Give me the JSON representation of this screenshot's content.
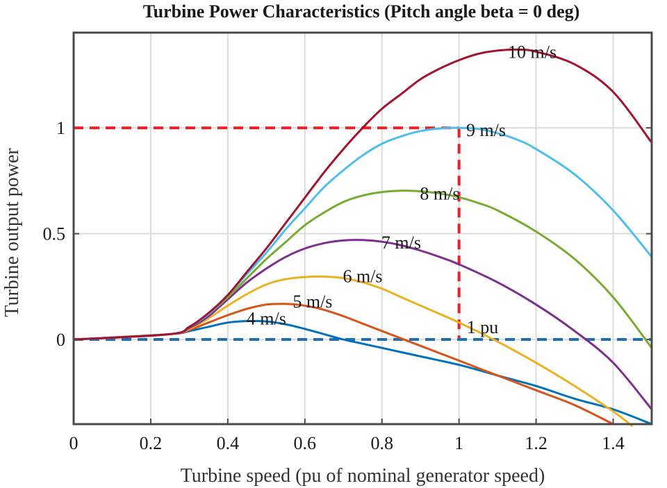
{
  "chart_data": {
    "type": "line",
    "title": "Turbine Power Characteristics (Pitch angle beta = 0 deg)",
    "xlabel": "Turbine speed (pu of nominal generator speed)",
    "ylabel": "Turbine output power",
    "xlim": [
      0,
      1.5
    ],
    "ylim": [
      -0.4,
      1.45
    ],
    "x_ticks": [
      0,
      0.2,
      0.4,
      0.6,
      0.8,
      1,
      1.2,
      1.4
    ],
    "x_tick_labels": [
      "0",
      "0.2",
      "0.4",
      "0.6",
      "0.8",
      "1",
      "1.2",
      "1.4"
    ],
    "y_ticks": [
      0,
      0.5,
      1
    ],
    "y_tick_labels": [
      "0",
      "0.5",
      "1"
    ],
    "grid": true,
    "series": [
      {
        "name": "4 m/s",
        "label": "4 m/s",
        "color": "#0072BD",
        "label_at": [
          0.5,
          0.1
        ],
        "x": [
          0,
          0.25,
          0.3,
          0.35,
          0.4,
          0.45,
          0.5,
          0.55,
          0.6,
          0.65,
          0.7,
          0.75,
          0.8,
          0.9,
          1.0,
          1.1,
          1.2,
          1.3,
          1.4,
          1.5
        ],
        "y": [
          0,
          0.025,
          0.04,
          0.06,
          0.08,
          0.087,
          0.085,
          0.072,
          0.05,
          0.025,
          0.0,
          -0.02,
          -0.04,
          -0.08,
          -0.12,
          -0.17,
          -0.22,
          -0.28,
          -0.33,
          -0.4
        ]
      },
      {
        "name": "5 m/s",
        "label": "5 m/s",
        "color": "#D95319",
        "label_at": [
          0.62,
          0.18
        ],
        "x": [
          0,
          0.25,
          0.3,
          0.35,
          0.4,
          0.45,
          0.5,
          0.55,
          0.6,
          0.65,
          0.7,
          0.75,
          0.8,
          0.9,
          1.0,
          1.1,
          1.2,
          1.3,
          1.4
        ],
        "y": [
          0,
          0.025,
          0.045,
          0.08,
          0.115,
          0.145,
          0.165,
          0.168,
          0.16,
          0.14,
          0.11,
          0.075,
          0.04,
          -0.03,
          -0.1,
          -0.17,
          -0.24,
          -0.31,
          -0.4
        ]
      },
      {
        "name": "6 m/s",
        "label": "6 m/s",
        "color": "#EDB120",
        "label_at": [
          0.75,
          0.3
        ],
        "x": [
          0,
          0.25,
          0.3,
          0.35,
          0.4,
          0.45,
          0.5,
          0.55,
          0.6,
          0.65,
          0.7,
          0.75,
          0.8,
          0.85,
          0.9,
          1.0,
          1.1,
          1.2,
          1.3,
          1.4,
          1.45
        ],
        "y": [
          0,
          0.025,
          0.05,
          0.1,
          0.16,
          0.215,
          0.26,
          0.285,
          0.295,
          0.297,
          0.29,
          0.27,
          0.24,
          0.2,
          0.16,
          0.08,
          -0.01,
          -0.11,
          -0.22,
          -0.34,
          -0.41
        ]
      },
      {
        "name": "7 m/s",
        "label": "7 m/s",
        "color": "#7E2F8E",
        "label_at": [
          0.85,
          0.46
        ],
        "x": [
          0,
          0.25,
          0.3,
          0.35,
          0.4,
          0.45,
          0.5,
          0.55,
          0.6,
          0.65,
          0.7,
          0.75,
          0.8,
          0.85,
          0.9,
          0.95,
          1.0,
          1.1,
          1.2,
          1.3,
          1.4,
          1.5
        ],
        "y": [
          0,
          0.025,
          0.055,
          0.11,
          0.19,
          0.27,
          0.335,
          0.39,
          0.43,
          0.455,
          0.468,
          0.47,
          0.462,
          0.445,
          0.42,
          0.39,
          0.355,
          0.27,
          0.165,
          0.04,
          -0.11,
          -0.33
        ]
      },
      {
        "name": "8 m/s",
        "label": "8 m/s",
        "color": "#77AC30",
        "label_at": [
          0.95,
          0.69
        ],
        "x": [
          0,
          0.25,
          0.3,
          0.35,
          0.4,
          0.45,
          0.5,
          0.55,
          0.6,
          0.65,
          0.7,
          0.75,
          0.8,
          0.85,
          0.9,
          0.95,
          1.0,
          1.05,
          1.1,
          1.2,
          1.3,
          1.4,
          1.5
        ],
        "y": [
          0,
          0.025,
          0.06,
          0.12,
          0.2,
          0.29,
          0.38,
          0.46,
          0.54,
          0.6,
          0.65,
          0.68,
          0.697,
          0.703,
          0.7,
          0.69,
          0.672,
          0.645,
          0.61,
          0.51,
          0.38,
          0.2,
          -0.04
        ]
      },
      {
        "name": "9 m/s",
        "label": "9 m/s",
        "color": "#4DBEEE",
        "label_at": [
          1.07,
          0.99
        ],
        "x": [
          0,
          0.25,
          0.3,
          0.35,
          0.4,
          0.45,
          0.5,
          0.55,
          0.6,
          0.65,
          0.7,
          0.75,
          0.8,
          0.85,
          0.9,
          0.95,
          1.0,
          1.05,
          1.1,
          1.15,
          1.2,
          1.3,
          1.4,
          1.5
        ],
        "y": [
          0,
          0.025,
          0.06,
          0.12,
          0.21,
          0.31,
          0.41,
          0.52,
          0.62,
          0.72,
          0.8,
          0.87,
          0.925,
          0.96,
          0.985,
          0.997,
          1.0,
          0.995,
          0.975,
          0.945,
          0.9,
          0.78,
          0.61,
          0.39
        ]
      },
      {
        "name": "10 m/s",
        "label": "10 m/s",
        "color": "#A2142F",
        "label_at": [
          1.19,
          1.36
        ],
        "x": [
          0,
          0.25,
          0.3,
          0.35,
          0.4,
          0.45,
          0.5,
          0.55,
          0.6,
          0.65,
          0.7,
          0.75,
          0.8,
          0.85,
          0.9,
          0.95,
          1.0,
          1.05,
          1.1,
          1.15,
          1.2,
          1.3,
          1.4,
          1.5
        ],
        "y": [
          0,
          0.025,
          0.06,
          0.125,
          0.21,
          0.32,
          0.43,
          0.55,
          0.67,
          0.79,
          0.9,
          1.0,
          1.09,
          1.16,
          1.23,
          1.28,
          1.32,
          1.35,
          1.365,
          1.37,
          1.36,
          1.3,
          1.17,
          0.93
        ]
      }
    ],
    "reference_lines": [
      {
        "name": "rated-power-line",
        "color": "#E8202A",
        "x": [
          0,
          1
        ],
        "y": [
          1,
          1
        ]
      },
      {
        "name": "rated-speed-line",
        "color": "#E8202A",
        "x": [
          1,
          1
        ],
        "y": [
          1,
          0
        ]
      },
      {
        "name": "zero-power-line",
        "color": "#1F6FB5",
        "x": [
          0,
          1.5
        ],
        "y": [
          0,
          0
        ]
      }
    ],
    "annotations": [
      {
        "text": "1 pu",
        "at": [
          1.02,
          0.06
        ]
      }
    ]
  }
}
